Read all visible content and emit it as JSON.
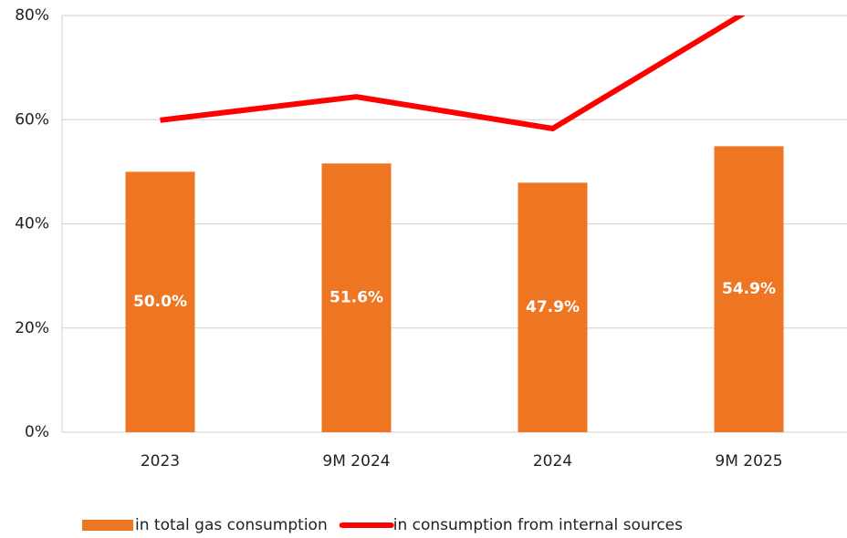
{
  "chart_data": {
    "type": "bar_line",
    "categories": [
      "2023",
      "9M 2024",
      "2024",
      "9M 2025"
    ],
    "series": [
      {
        "name": "in total gas consumption",
        "type": "bar",
        "color": "#ee7623",
        "values": [
          50.0,
          51.6,
          47.9,
          54.9
        ],
        "value_labels": [
          "50.0%",
          "51.6%",
          "47.9%",
          "54.9%"
        ]
      },
      {
        "name": "in consumption from internal sources",
        "type": "line",
        "color": "#ff0000",
        "values": [
          59.9,
          64.4,
          58.3,
          81
        ]
      }
    ],
    "ylim": [
      0,
      80
    ],
    "yticks": [
      {
        "value": 0,
        "label": "0%"
      },
      {
        "value": 20,
        "label": "20%"
      },
      {
        "value": 40,
        "label": "40%"
      },
      {
        "value": 60,
        "label": "60%"
      },
      {
        "value": 80,
        "label": "80%"
      }
    ],
    "grid": true,
    "legend": "bottom"
  }
}
